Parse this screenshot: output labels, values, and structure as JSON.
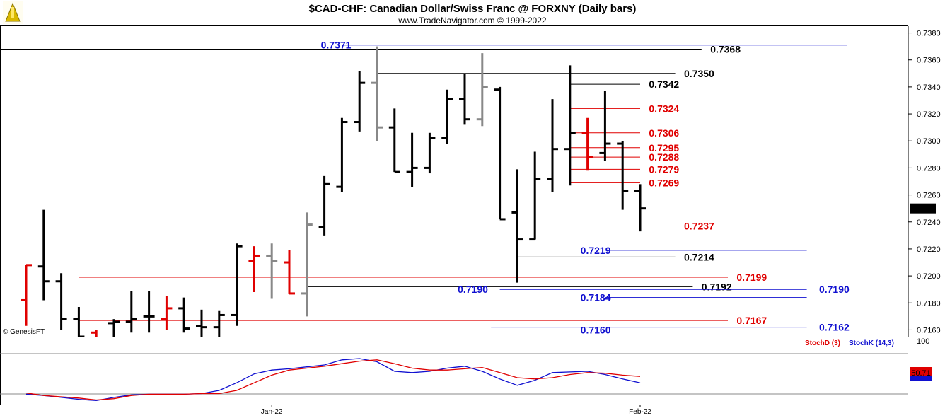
{
  "chart_data": {
    "type": "ohlc",
    "title": "$CAD-CHF:  Canadian Dollar/Swiss Franc @ FORXNY  (Daily bars)",
    "subtitle": "www.TradeNavigator.com © 1999-2022",
    "watermark": "© GenesisFT",
    "ylim": [
      0.7155,
      0.7385
    ],
    "y_ticks": [
      "0.7380",
      "0.7360",
      "0.7340",
      "0.7320",
      "0.7300",
      "0.7280",
      "0.7260",
      "0.7240",
      "0.7220",
      "0.7200",
      "0.7180",
      "0.7160"
    ],
    "last_price": "0.7250",
    "x_labels": [
      {
        "label": "Jan-22",
        "index": 14
      },
      {
        "label": "Feb-22",
        "index": 35
      }
    ],
    "bars": [
      {
        "o": 0.7182,
        "h": 0.7208,
        "l": 0.7163,
        "c": 0.7208,
        "color": "#e00000"
      },
      {
        "o": 0.7207,
        "h": 0.7249,
        "l": 0.7182,
        "c": 0.7196,
        "color": "#000000"
      },
      {
        "o": 0.7196,
        "h": 0.7202,
        "l": 0.716,
        "c": 0.7168,
        "color": "#000000"
      },
      {
        "o": 0.7168,
        "h": 0.7177,
        "l": 0.715,
        "c": 0.7155,
        "color": "#000000"
      },
      {
        "o": 0.7158,
        "h": 0.716,
        "l": 0.7145,
        "c": 0.715,
        "color": "#e00000"
      },
      {
        "o": 0.7165,
        "h": 0.7168,
        "l": 0.715,
        "c": 0.7166,
        "color": "#000000"
      },
      {
        "o": 0.7166,
        "h": 0.7189,
        "l": 0.7158,
        "c": 0.7168,
        "color": "#000000"
      },
      {
        "o": 0.717,
        "h": 0.7189,
        "l": 0.7158,
        "c": 0.717,
        "color": "#000000"
      },
      {
        "o": 0.7168,
        "h": 0.7185,
        "l": 0.716,
        "c": 0.7176,
        "color": "#e00000"
      },
      {
        "o": 0.7176,
        "h": 0.7184,
        "l": 0.7158,
        "c": 0.7161,
        "color": "#000000"
      },
      {
        "o": 0.7163,
        "h": 0.7175,
        "l": 0.7155,
        "c": 0.7162,
        "color": "#000000"
      },
      {
        "o": 0.7162,
        "h": 0.7174,
        "l": 0.7155,
        "c": 0.7171,
        "color": "#000000"
      },
      {
        "o": 0.7171,
        "h": 0.7224,
        "l": 0.7163,
        "c": 0.7222,
        "color": "#000000"
      },
      {
        "o": 0.7211,
        "h": 0.7222,
        "l": 0.7188,
        "c": 0.7215,
        "color": "#e00000"
      },
      {
        "o": 0.7215,
        "h": 0.7224,
        "l": 0.7183,
        "c": 0.7211,
        "color": "#888888"
      },
      {
        "o": 0.721,
        "h": 0.7219,
        "l": 0.7187,
        "c": 0.7187,
        "color": "#e00000"
      },
      {
        "o": 0.7187,
        "h": 0.7247,
        "l": 0.717,
        "c": 0.7238,
        "color": "#888888"
      },
      {
        "o": 0.7236,
        "h": 0.7274,
        "l": 0.723,
        "c": 0.7268,
        "color": "#000000"
      },
      {
        "o": 0.7266,
        "h": 0.7317,
        "l": 0.7262,
        "c": 0.7314,
        "color": "#000000"
      },
      {
        "o": 0.7314,
        "h": 0.7352,
        "l": 0.7307,
        "c": 0.7343,
        "color": "#000000"
      },
      {
        "o": 0.7343,
        "h": 0.737,
        "l": 0.73,
        "c": 0.731,
        "color": "#888888"
      },
      {
        "o": 0.731,
        "h": 0.7324,
        "l": 0.7277,
        "c": 0.7277,
        "color": "#000000"
      },
      {
        "o": 0.7277,
        "h": 0.7306,
        "l": 0.7266,
        "c": 0.728,
        "color": "#000000"
      },
      {
        "o": 0.728,
        "h": 0.7306,
        "l": 0.7276,
        "c": 0.7302,
        "color": "#000000"
      },
      {
        "o": 0.7302,
        "h": 0.7338,
        "l": 0.7298,
        "c": 0.7331,
        "color": "#000000"
      },
      {
        "o": 0.7331,
        "h": 0.735,
        "l": 0.7312,
        "c": 0.7316,
        "color": "#000000"
      },
      {
        "o": 0.7316,
        "h": 0.7365,
        "l": 0.7311,
        "c": 0.734,
        "color": "#888888"
      },
      {
        "o": 0.7338,
        "h": 0.734,
        "l": 0.7242,
        "c": 0.7242,
        "color": "#000000"
      },
      {
        "o": 0.7247,
        "h": 0.7279,
        "l": 0.7195,
        "c": 0.7227,
        "color": "#000000"
      },
      {
        "o": 0.7227,
        "h": 0.7292,
        "l": 0.7227,
        "c": 0.7272,
        "color": "#000000"
      },
      {
        "o": 0.7272,
        "h": 0.7331,
        "l": 0.7262,
        "c": 0.7294,
        "color": "#000000"
      },
      {
        "o": 0.7294,
        "h": 0.7356,
        "l": 0.7267,
        "c": 0.7306,
        "color": "#000000"
      },
      {
        "o": 0.7306,
        "h": 0.7317,
        "l": 0.7278,
        "c": 0.7288,
        "color": "#e00000"
      },
      {
        "o": 0.7291,
        "h": 0.7337,
        "l": 0.7285,
        "c": 0.7298,
        "color": "#000000"
      },
      {
        "o": 0.7298,
        "h": 0.73,
        "l": 0.7249,
        "c": 0.7263,
        "color": "#000000"
      },
      {
        "o": 0.7263,
        "h": 0.7268,
        "l": 0.7233,
        "c": 0.725,
        "color": "#000000"
      }
    ],
    "levels": [
      {
        "value": 0.7371,
        "label": "0.7371",
        "color": "#1010d0",
        "line_from": 18,
        "line_to": 46.8,
        "label_at": 16.8,
        "label_color": "#1010d0"
      },
      {
        "value": 0.7368,
        "label": "0.7368",
        "color": "#000000",
        "line_from": -1.5,
        "line_to": 38.5,
        "label_at": 39.0,
        "label_color": "#000000"
      },
      {
        "value": 0.735,
        "label": "0.7350",
        "color": "#000000",
        "line_from": 20.0,
        "line_to": 37.0,
        "label_at": 37.5,
        "label_color": "#000000"
      },
      {
        "value": 0.7342,
        "label": "0.7342",
        "color": "#000000",
        "line_from": 31.0,
        "line_to": 35.0,
        "label_at": 35.5,
        "label_color": "#000000"
      },
      {
        "value": 0.7324,
        "label": "0.7324",
        "color": "#e00000",
        "line_from": 31.0,
        "line_to": 35.0,
        "label_at": 35.5,
        "label_color": "#e00000"
      },
      {
        "value": 0.7306,
        "label": "0.7306",
        "color": "#e00000",
        "line_from": 31.0,
        "line_to": 35.0,
        "label_at": 35.5,
        "label_color": "#e00000"
      },
      {
        "value": 0.7295,
        "label": "0.7295",
        "color": "#e00000",
        "line_from": 31.0,
        "line_to": 35.0,
        "label_at": 35.5,
        "label_color": "#e00000"
      },
      {
        "value": 0.7288,
        "label": "0.7288",
        "color": "#e00000",
        "line_from": 31.0,
        "line_to": 35.0,
        "label_at": 35.5,
        "label_color": "#e00000"
      },
      {
        "value": 0.7279,
        "label": "0.7279",
        "color": "#e00000",
        "line_from": 31.0,
        "line_to": 35.0,
        "label_at": 35.5,
        "label_color": "#e00000"
      },
      {
        "value": 0.7269,
        "label": "0.7269",
        "color": "#e00000",
        "line_from": 31.0,
        "line_to": 35.0,
        "label_at": 35.5,
        "label_color": "#e00000"
      },
      {
        "value": 0.7237,
        "label": "0.7237",
        "color": "#e00000",
        "line_from": 28.0,
        "line_to": 37.0,
        "label_at": 37.5,
        "label_color": "#e00000"
      },
      {
        "value": 0.7219,
        "label": "0.7219",
        "color": "#1010d0",
        "line_from": 33.0,
        "line_to": 44.5,
        "label_at": 31.6,
        "label_color": "#1010d0"
      },
      {
        "value": 0.7214,
        "label": "0.7214",
        "color": "#000000",
        "line_from": 28.0,
        "line_to": 37.0,
        "label_at": 37.5,
        "label_color": "#000000"
      },
      {
        "value": 0.7199,
        "label": "0.7199",
        "color": "#e00000",
        "line_from": 3.0,
        "line_to": 40.0,
        "label_at": 40.5,
        "label_color": "#e00000"
      },
      {
        "value": 0.7192,
        "label": "0.7192",
        "color": "#000000",
        "line_from": 16.0,
        "line_to": 38.0,
        "label_at": 38.5,
        "label_color": "#000000"
      },
      {
        "value": 0.719,
        "label": "0.7190",
        "color": "#1010d0",
        "line_from": 27.0,
        "line_to": 44.5,
        "label_at": 24.6,
        "label_color": "#1010d0"
      },
      {
        "value": 0.719,
        "label": "0.7190",
        "color": "#1010d0",
        "line_from": 44.5,
        "line_to": 44.5,
        "label_at": 45.2,
        "label_color": "#1010d0"
      },
      {
        "value": 0.7184,
        "label": "0.7184",
        "color": "#1010d0",
        "line_from": 33.0,
        "line_to": 44.5,
        "label_at": 31.6,
        "label_color": "#1010d0"
      },
      {
        "value": 0.7167,
        "label": "0.7167",
        "color": "#e00000",
        "line_from": 3.0,
        "line_to": 40.0,
        "label_at": 40.5,
        "label_color": "#e00000"
      },
      {
        "value": 0.7162,
        "label": "0.7162",
        "color": "#1010d0",
        "line_from": 26.5,
        "line_to": 44.5,
        "label_at": 45.2,
        "label_color": "#1010d0"
      },
      {
        "value": 0.716,
        "label": "0.7160",
        "color": "#1010d0",
        "line_from": 33.0,
        "line_to": 44.5,
        "label_at": 31.6,
        "label_color": "#1010d0"
      }
    ],
    "stochastic": {
      "label_d": "StochD (3)",
      "label_k": "StochK (14,3)",
      "top_tick": "100",
      "last_value": "50.71",
      "ylim": [
        0,
        100
      ],
      "d_color": "#e00000",
      "k_color": "#1010d0",
      "d_values": [
        16,
        12,
        10,
        8,
        5,
        7,
        12,
        14,
        14,
        14,
        15,
        15,
        20,
        32,
        44,
        52,
        55,
        58,
        62,
        66,
        68,
        62,
        55,
        52,
        52,
        54,
        56,
        48,
        40,
        38,
        40,
        45,
        48,
        47,
        44,
        42
      ],
      "k_values": [
        14,
        12,
        9,
        6,
        4,
        9,
        13,
        14,
        14,
        14,
        15,
        20,
        32,
        46,
        52,
        54,
        57,
        60,
        68,
        70,
        65,
        50,
        48,
        50,
        55,
        58,
        50,
        38,
        28,
        36,
        48,
        49,
        50,
        45,
        38,
        32
      ]
    }
  }
}
